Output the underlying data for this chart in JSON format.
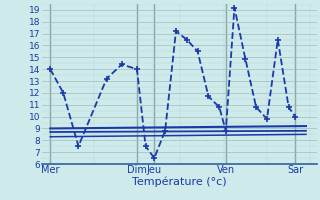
{
  "background_color": "#ceeaea",
  "grid_major_color": "#a0bcbc",
  "grid_minor_color": "#b8d4d4",
  "line_color": "#1a3aaa",
  "xlabel": "Température (°c)",
  "ylim": [
    6,
    19.5
  ],
  "yticks": [
    6,
    7,
    8,
    9,
    10,
    11,
    12,
    13,
    14,
    15,
    16,
    17,
    18,
    19
  ],
  "xlim": [
    -0.2,
    12.5
  ],
  "day_labels": [
    "Mer",
    "Dim",
    "Jeu",
    "Ven",
    "Sar"
  ],
  "day_positions": [
    0.2,
    4.2,
    5.0,
    8.3,
    11.5
  ],
  "day_vlines": [
    0.2,
    4.2,
    5.0,
    8.3,
    11.5
  ],
  "series": [
    {
      "x": [
        0.2,
        0.8,
        1.5,
        2.8,
        3.5,
        4.2,
        4.6,
        5.0,
        5.5,
        6.0,
        6.5,
        7.0,
        7.5,
        8.0,
        8.3,
        8.7,
        9.2,
        9.7,
        10.2,
        10.7,
        11.2,
        11.5
      ],
      "y": [
        14,
        12,
        7.5,
        13.2,
        14.4,
        14.0,
        7.5,
        6.5,
        8.8,
        17.2,
        16.5,
        15.5,
        11.7,
        10.8,
        8.8,
        19.2,
        14.9,
        10.8,
        9.8,
        16.5,
        10.8,
        10.0
      ],
      "linestyle": "--",
      "linewidth": 1.3,
      "marker": "+",
      "markersize": 5
    },
    {
      "x": [
        0.2,
        12.0
      ],
      "y": [
        9.0,
        9.2
      ],
      "linestyle": "-",
      "linewidth": 1.5,
      "marker": null,
      "markersize": 0
    },
    {
      "x": [
        0.2,
        12.0
      ],
      "y": [
        8.7,
        8.8
      ],
      "linestyle": "-",
      "linewidth": 1.3,
      "marker": null,
      "markersize": 0
    },
    {
      "x": [
        0.2,
        12.0
      ],
      "y": [
        8.3,
        8.5
      ],
      "linestyle": "-",
      "linewidth": 1.1,
      "marker": null,
      "markersize": 0
    }
  ]
}
